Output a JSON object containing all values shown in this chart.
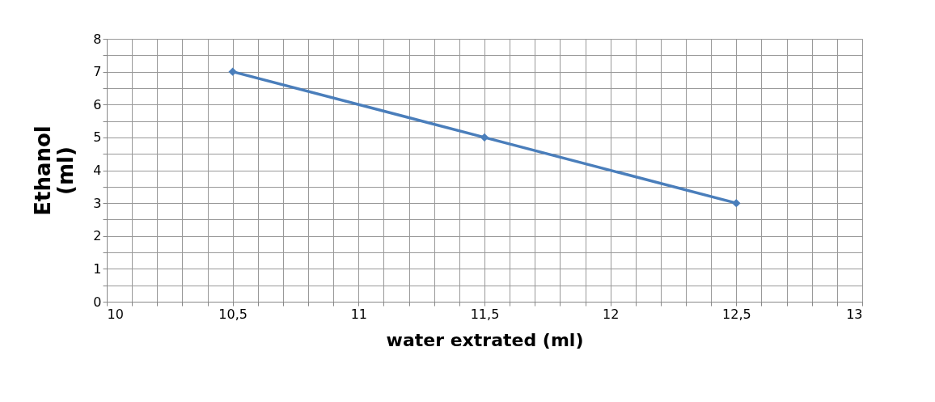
{
  "chart_data": {
    "type": "line",
    "xlabel": "water extrated (ml)",
    "ylabel": "Ethanol (ml)",
    "x": [
      10.5,
      11.5,
      12.5
    ],
    "series": [
      {
        "color": "#4a7ebb",
        "values": [
          7,
          5,
          3
        ]
      }
    ],
    "xlim": [
      10,
      13
    ],
    "xticks": [
      10,
      {
        "value": 10.1,
        "label": null
      },
      {
        "value": 10.2,
        "label": null
      },
      {
        "value": 10.3,
        "label": null
      },
      {
        "value": 10.4,
        "label": null
      },
      {
        "value": 10.5,
        "label": "10,5"
      },
      {
        "value": 10.6,
        "label": null
      },
      {
        "value": 10.7,
        "label": null
      },
      {
        "value": 10.8,
        "label": null
      },
      {
        "value": 10.9,
        "label": null
      },
      11,
      {
        "value": 11.1,
        "label": null
      },
      {
        "value": 11.2,
        "label": null
      },
      {
        "value": 11.3,
        "label": null
      },
      {
        "value": 11.4,
        "label": null
      },
      {
        "value": 11.5,
        "label": "11,5"
      },
      {
        "value": 11.6,
        "label": null
      },
      {
        "value": 11.7,
        "label": null
      },
      {
        "value": 11.8,
        "label": null
      },
      {
        "value": 11.9,
        "label": null
      },
      12,
      {
        "value": 12.1,
        "label": null
      },
      {
        "value": 12.2,
        "label": null
      },
      {
        "value": 12.3,
        "label": null
      },
      {
        "value": 12.4,
        "label": null
      },
      {
        "value": 12.5,
        "label": "12,5"
      },
      {
        "value": 12.6,
        "label": null
      },
      {
        "value": 12.7,
        "label": null
      },
      {
        "value": 12.8,
        "label": null
      },
      {
        "value": 12.9,
        "label": null
      },
      13
    ],
    "ylim": [
      0,
      8
    ],
    "yticks": [
      0,
      {
        "value": 0.5,
        "label": null
      },
      1,
      {
        "value": 1.5,
        "label": null
      },
      2,
      {
        "value": 2.5,
        "label": null
      },
      3,
      {
        "value": 3.5,
        "label": null
      },
      4,
      {
        "value": 4.5,
        "label": null
      },
      5,
      {
        "value": 5.5,
        "label": null
      },
      6,
      {
        "value": 6.5,
        "label": null
      },
      7,
      {
        "value": 7.5,
        "label": null
      },
      8
    ],
    "grid": true,
    "marker": "diamond",
    "line_style": "solid"
  }
}
